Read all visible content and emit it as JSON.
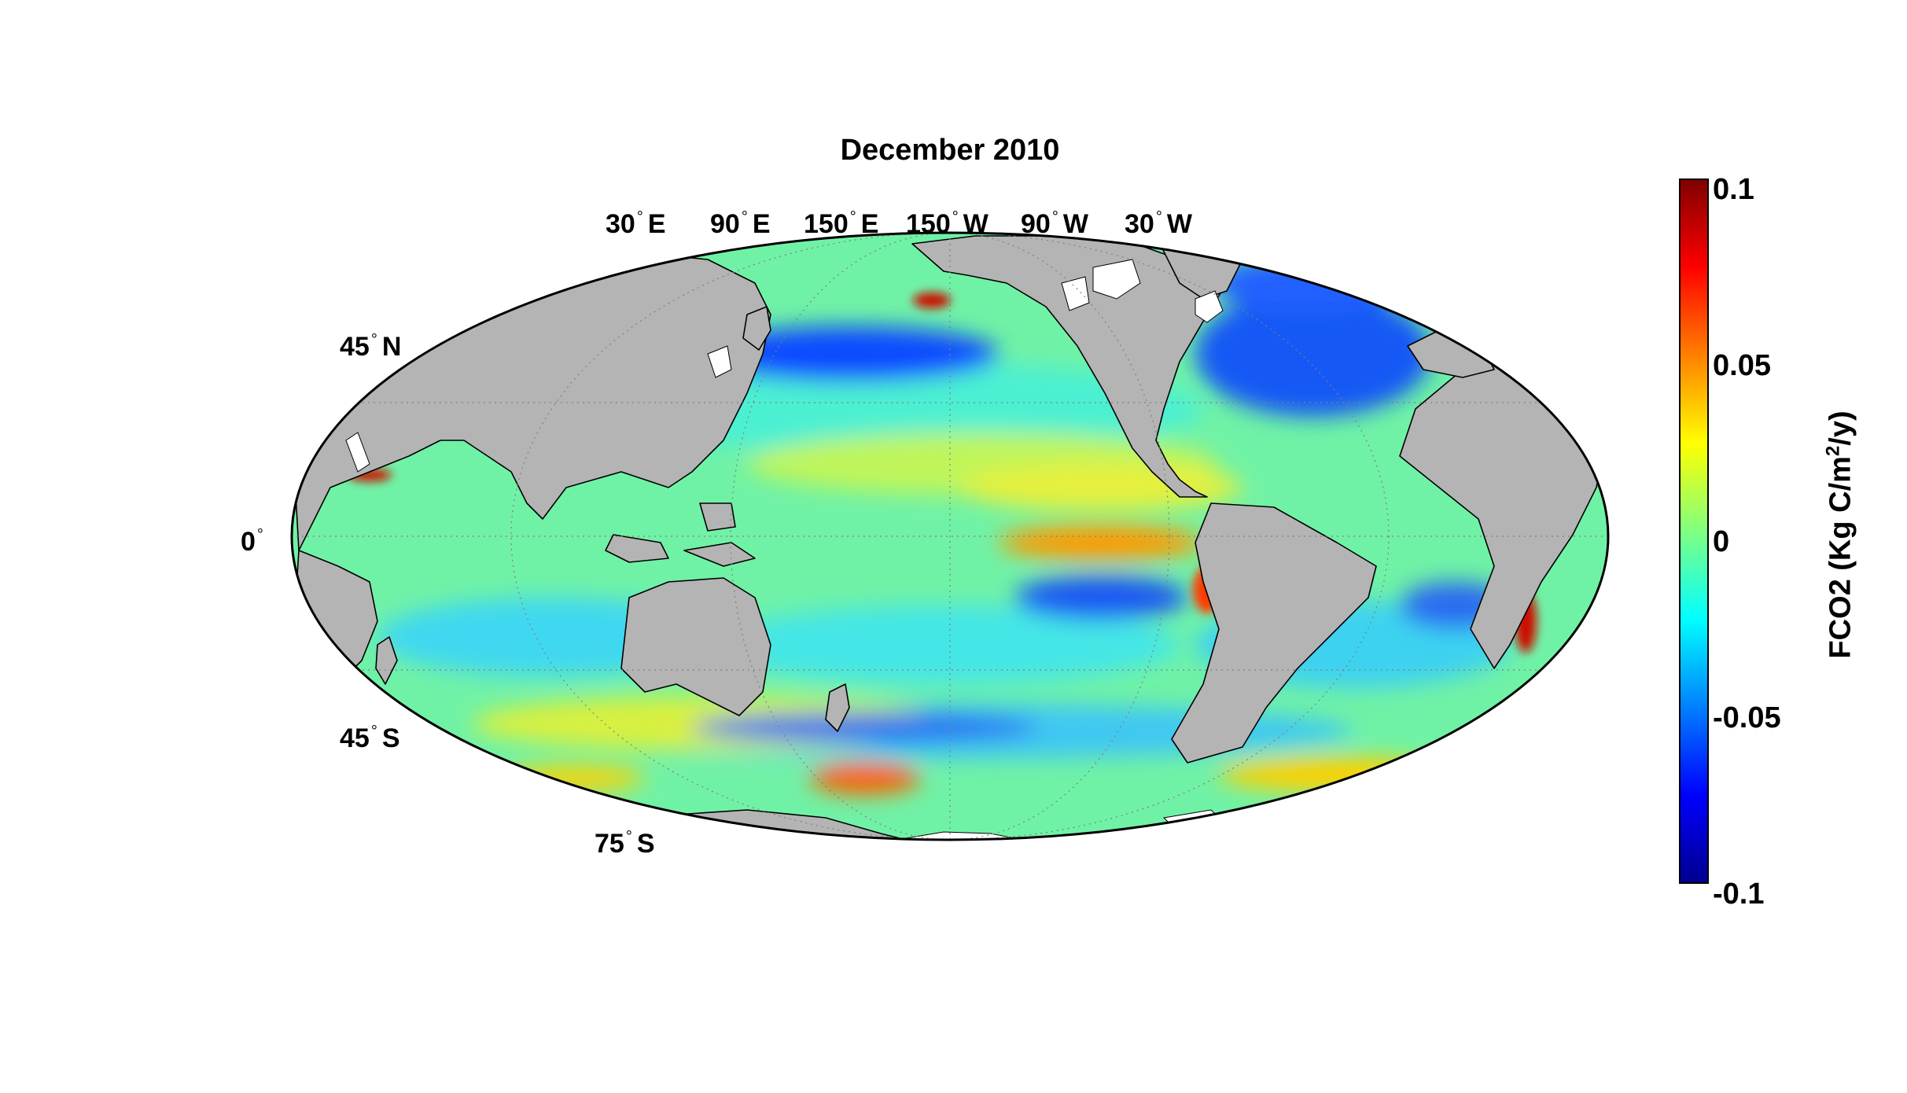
{
  "title": "December 2010",
  "projection": "mollweide",
  "colors": {
    "land": "#b4b4b4",
    "ice": "#ffffff",
    "coast": "#000000",
    "grid": "#7f7f7f",
    "colormap": [
      "#00008f",
      "#0000ff",
      "#0080ff",
      "#00ffff",
      "#80ff80",
      "#ffff00",
      "#ff8000",
      "#ff0000",
      "#800000"
    ]
  },
  "longitude_labels": [
    {
      "value": "30",
      "hemi": "E"
    },
    {
      "value": "90",
      "hemi": "E"
    },
    {
      "value": "150",
      "hemi": "E"
    },
    {
      "value": "150",
      "hemi": "W"
    },
    {
      "value": "90",
      "hemi": "W"
    },
    {
      "value": "30",
      "hemi": "W"
    }
  ],
  "latitude_labels": [
    {
      "value": "45",
      "hemi": "N"
    },
    {
      "value": "0",
      "hemi": ""
    },
    {
      "value": "45",
      "hemi": "S"
    },
    {
      "value": "75",
      "hemi": "S"
    }
  ],
  "colorbar": {
    "label_main": "FCO2 (Kg C/m",
    "label_sup": "2",
    "label_end": "/y)",
    "ticks": [
      "0.1",
      "0.05",
      "0",
      "-0.05",
      "-0.1"
    ],
    "min": -0.1,
    "max": 0.1,
    "colormap_name": "jet"
  },
  "anomalies": [
    {
      "region": "equatorial-east-pacific",
      "sign": "positive"
    },
    {
      "region": "south-east-pacific",
      "sign": "negative"
    },
    {
      "region": "north-pacific",
      "sign": "negative"
    },
    {
      "region": "north-atlantic",
      "sign": "negative"
    },
    {
      "region": "peru-coast",
      "sign": "positive"
    },
    {
      "region": "arabian-sea",
      "sign": "positive"
    },
    {
      "region": "brazil-coast",
      "sign": "positive"
    },
    {
      "region": "southern-ocean",
      "sign": "positive"
    }
  ]
}
